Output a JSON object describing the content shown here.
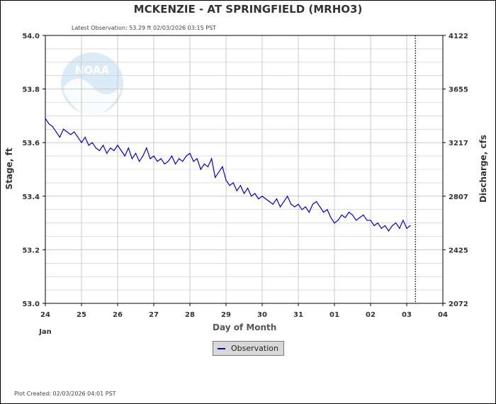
{
  "header": {
    "title": "MCKENZIE - AT SPRINGFIELD  (MRHO3)",
    "latest_observation": "Latest Observation: 53.29 ft 02/03/2026 03:15 PST"
  },
  "footer": {
    "plot_created": "Plot Created: 02/03/2026 04:01 PST"
  },
  "legend": {
    "entries": [
      "Observation"
    ],
    "placement": "bottom-center"
  },
  "colors": {
    "observation_line": "#0000cc",
    "grid": "#c8c8c8",
    "background": "#ffffff"
  },
  "watermark": "NOAA",
  "chart_data": {
    "type": "line",
    "title": "MCKENZIE - AT SPRINGFIELD  (MRHO3)",
    "xlabel": "Day of Month",
    "ylabel": "Stage, ft",
    "y2label": "Discharge, cfs",
    "x_ticks": [
      "24",
      "25",
      "26",
      "27",
      "28",
      "29",
      "30",
      "31",
      "01",
      "02",
      "03",
      "04"
    ],
    "x_month_label": "Jan",
    "xlim": [
      0,
      11
    ],
    "ylim": [
      53.0,
      54.0
    ],
    "y_ticks": [
      53.0,
      53.2,
      53.4,
      53.6,
      53.8,
      54.0
    ],
    "y_tick_labels": [
      "53.0",
      "53.2",
      "53.4",
      "53.6",
      "53.8",
      "54.0"
    ],
    "y2_tick_labels": [
      "2072",
      "2425",
      "2807",
      "3217",
      "3655",
      "4122"
    ],
    "grid": true,
    "current_time_marker_day": 10.24,
    "series": [
      {
        "name": "Observation",
        "x": [
          0.0,
          0.1,
          0.2,
          0.3,
          0.4,
          0.5,
          0.6,
          0.7,
          0.8,
          0.9,
          1.0,
          1.1,
          1.2,
          1.3,
          1.4,
          1.5,
          1.6,
          1.7,
          1.8,
          1.9,
          2.0,
          2.1,
          2.2,
          2.3,
          2.4,
          2.5,
          2.6,
          2.7,
          2.8,
          2.9,
          3.0,
          3.1,
          3.2,
          3.3,
          3.4,
          3.5,
          3.6,
          3.7,
          3.8,
          3.9,
          4.0,
          4.1,
          4.2,
          4.3,
          4.4,
          4.5,
          4.6,
          4.7,
          4.8,
          4.9,
          5.0,
          5.1,
          5.2,
          5.3,
          5.4,
          5.5,
          5.6,
          5.7,
          5.8,
          5.9,
          6.0,
          6.1,
          6.2,
          6.3,
          6.4,
          6.5,
          6.6,
          6.7,
          6.8,
          6.9,
          7.0,
          7.1,
          7.2,
          7.3,
          7.4,
          7.5,
          7.6,
          7.7,
          7.8,
          7.9,
          8.0,
          8.1,
          8.2,
          8.3,
          8.4,
          8.5,
          8.6,
          8.7,
          8.8,
          8.9,
          9.0,
          9.1,
          9.2,
          9.3,
          9.4,
          9.5,
          9.6,
          9.7,
          9.8,
          9.9,
          10.0,
          10.1
        ],
        "y": [
          53.69,
          53.67,
          53.66,
          53.64,
          53.62,
          53.65,
          53.64,
          53.63,
          53.64,
          53.62,
          53.6,
          53.62,
          53.59,
          53.6,
          53.58,
          53.57,
          53.59,
          53.56,
          53.58,
          53.57,
          53.59,
          53.57,
          53.55,
          53.58,
          53.54,
          53.56,
          53.53,
          53.55,
          53.58,
          53.54,
          53.55,
          53.53,
          53.54,
          53.52,
          53.53,
          53.55,
          53.52,
          53.54,
          53.53,
          53.55,
          53.56,
          53.53,
          53.54,
          53.5,
          53.52,
          53.51,
          53.54,
          53.47,
          53.49,
          53.51,
          53.46,
          53.44,
          53.45,
          53.42,
          53.44,
          53.41,
          53.43,
          53.4,
          53.41,
          53.39,
          53.4,
          53.39,
          53.38,
          53.37,
          53.39,
          53.36,
          53.38,
          53.4,
          53.37,
          53.36,
          53.37,
          53.35,
          53.36,
          53.34,
          53.37,
          53.38,
          53.36,
          53.34,
          53.35,
          53.32,
          53.3,
          53.31,
          53.33,
          53.32,
          53.34,
          53.33,
          53.31,
          53.32,
          53.33,
          53.31,
          53.31,
          53.29,
          53.3,
          53.28,
          53.29,
          53.27,
          53.29,
          53.3,
          53.28,
          53.31,
          53.28,
          53.29
        ]
      }
    ]
  }
}
